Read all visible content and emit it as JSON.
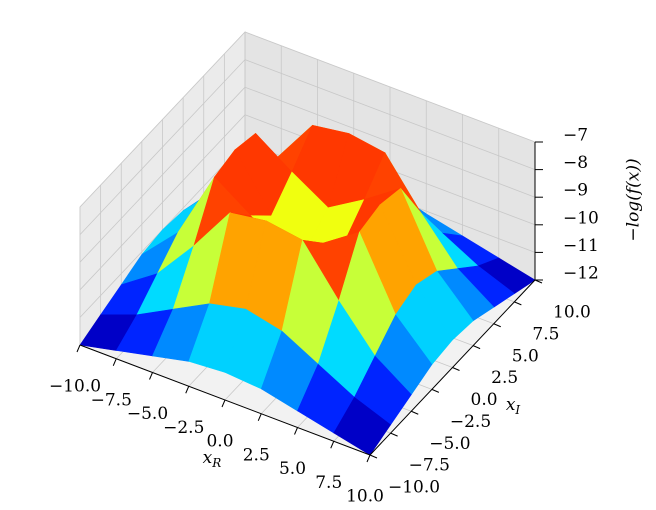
{
  "chart_data": {
    "type": "surface",
    "x": [
      -10,
      -7.5,
      -5,
      -2.5,
      0,
      2.5,
      5,
      7.5,
      10
    ],
    "y": [
      -10,
      -7.5,
      -5,
      -2.5,
      0,
      2.5,
      5,
      7.5,
      10
    ],
    "z": [
      [
        -12,
        -11.7,
        -11.4,
        -11.1,
        -11,
        -11.1,
        -11.4,
        -11.7,
        -12
      ],
      [
        -11.7,
        -11.2,
        -10.5,
        -9.8,
        -9.5,
        -9.8,
        -10.5,
        -11.2,
        -11.7
      ],
      [
        -11.4,
        -10.5,
        -9,
        -7.3,
        -7.1,
        -7.3,
        -9,
        -10.5,
        -11.4
      ],
      [
        -11.1,
        -9.8,
        -7.3,
        -8.2,
        -9,
        -8.2,
        -7.3,
        -9.8,
        -11.1
      ],
      [
        -11,
        -9.5,
        -7.1,
        -9,
        -9.6,
        -9,
        -7.1,
        -9.5,
        -11
      ],
      [
        -11.1,
        -9.8,
        -7.3,
        -8.2,
        -9,
        -8.2,
        -7.3,
        -9.8,
        -11.1
      ],
      [
        -11.4,
        -10.5,
        -9,
        -7.3,
        -7.1,
        -7.3,
        -9,
        -10.5,
        -11.4
      ],
      [
        -11.7,
        -11.2,
        -10.5,
        -9.8,
        -9.5,
        -9.8,
        -10.5,
        -11.2,
        -11.7
      ],
      [
        -12,
        -11.7,
        -11.4,
        -11.1,
        -11,
        -11.1,
        -11.4,
        -11.7,
        -12
      ]
    ],
    "colormap": "jet",
    "xlabel": {
      "symbol": "x",
      "subscript": "R"
    },
    "ylabel": {
      "symbol": "x",
      "subscript": "I"
    },
    "zlabel": "−log(f(x))",
    "xlim": [
      -10,
      10
    ],
    "ylim": [
      -10,
      10
    ],
    "zlim": [
      -12,
      -7
    ],
    "xticks": [
      {
        "value": -10,
        "label": "−10.0"
      },
      {
        "value": -7.5,
        "label": "−7.5"
      },
      {
        "value": -5,
        "label": "−5.0"
      },
      {
        "value": -2.5,
        "label": "−2.5"
      },
      {
        "value": 0,
        "label": "0.0"
      },
      {
        "value": 2.5,
        "label": "2.5"
      },
      {
        "value": 5,
        "label": "5.0"
      },
      {
        "value": 7.5,
        "label": "7.5"
      },
      {
        "value": 10,
        "label": "10.0"
      }
    ],
    "yticks": [
      {
        "value": -10,
        "label": "−10.0"
      },
      {
        "value": -7.5,
        "label": "−7.5"
      },
      {
        "value": -5,
        "label": "−5.0"
      },
      {
        "value": -2.5,
        "label": "−2.5"
      },
      {
        "value": 0,
        "label": "0.0"
      },
      {
        "value": 2.5,
        "label": "2.5"
      },
      {
        "value": 5,
        "label": "5.0"
      },
      {
        "value": 7.5,
        "label": "7.5"
      },
      {
        "value": 10,
        "label": "10.0"
      }
    ],
    "zticks": [
      {
        "value": -12,
        "label": "−12"
      },
      {
        "value": -11,
        "label": "−11"
      },
      {
        "value": -10,
        "label": "−10"
      },
      {
        "value": -9,
        "label": "−9"
      },
      {
        "value": -8,
        "label": "−8"
      },
      {
        "value": -7,
        "label": "−7"
      }
    ],
    "grid": true
  }
}
